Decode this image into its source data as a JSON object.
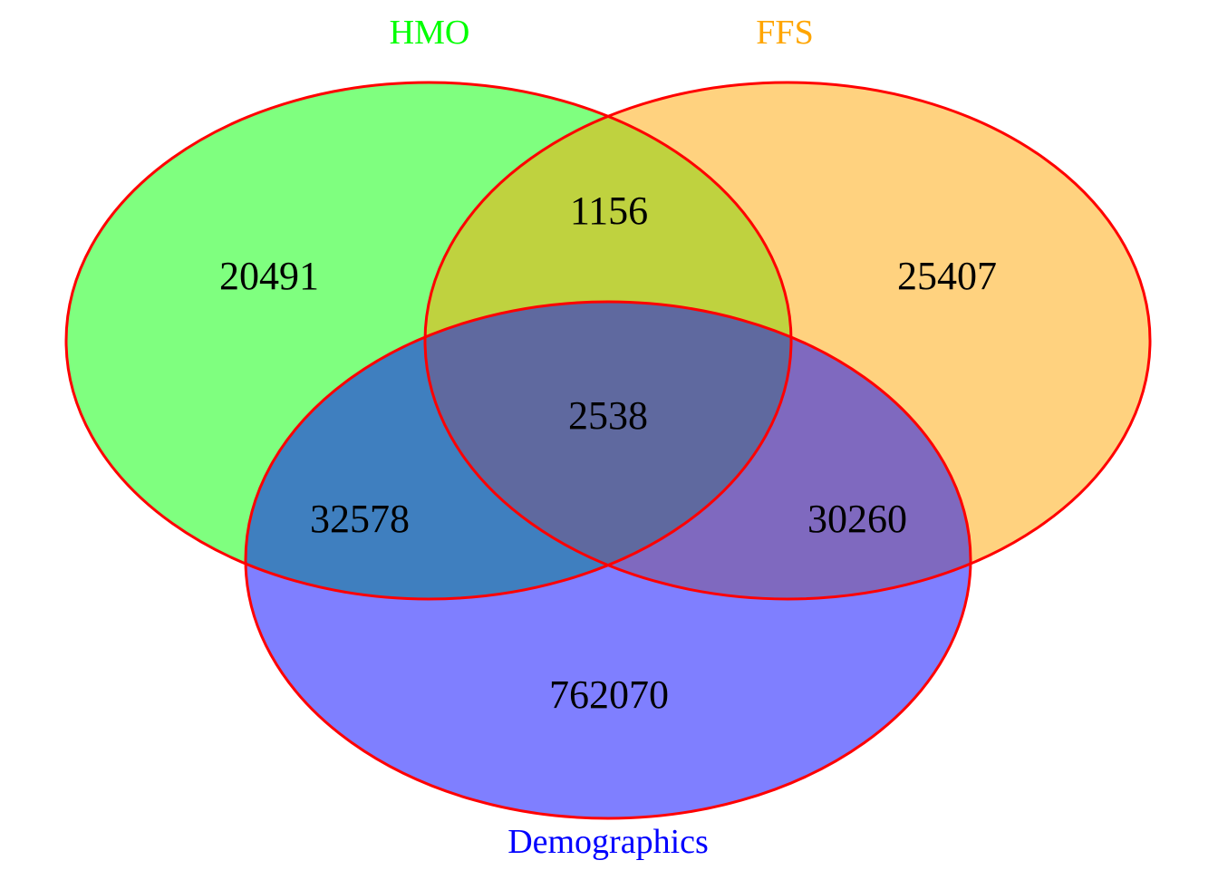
{
  "venn": {
    "sets": [
      {
        "key": "hmo",
        "label": "HMO",
        "color": "#00ff00"
      },
      {
        "key": "ffs",
        "label": "FFS",
        "color": "#ffa500"
      },
      {
        "key": "demographics",
        "label": "Demographics",
        "color": "#0000ff"
      }
    ],
    "outline_color": "#ff0000",
    "regions": {
      "hmo_only": "20491",
      "ffs_only": "25407",
      "demographics_only": "762070",
      "hmo_ffs": "1156",
      "hmo_demographics": "32578",
      "ffs_demographics": "30260",
      "all_three": "2538"
    }
  }
}
